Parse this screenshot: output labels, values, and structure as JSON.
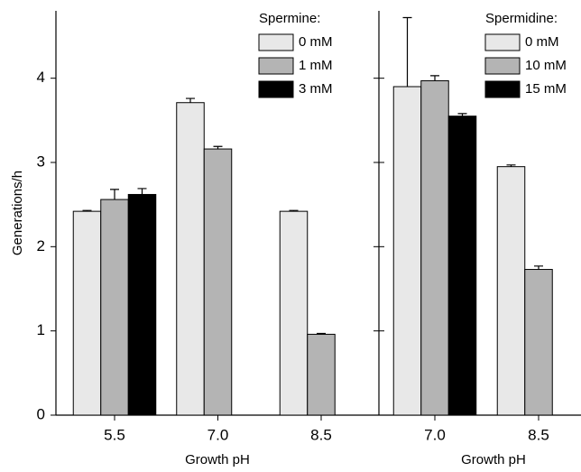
{
  "chart_data": [
    {
      "type": "bar",
      "legend_title": "Spermine:",
      "x_label": "Growth pH",
      "y_label": "Generations/h",
      "categories": [
        "5.5",
        "7.0",
        "8.5"
      ],
      "series": [
        {
          "name": "0 mM",
          "color": "#e8e8e8",
          "values": [
            2.42,
            3.71,
            2.42
          ],
          "errors": [
            0.01,
            0.05,
            0.01
          ]
        },
        {
          "name": "1 mM",
          "color": "#b4b4b4",
          "values": [
            2.56,
            3.16,
            0.96
          ],
          "errors": [
            0.12,
            0.03,
            0.01
          ]
        },
        {
          "name": "3 mM",
          "color": "#000000",
          "values": [
            2.62,
            null,
            null
          ],
          "errors": [
            0.07,
            null,
            null
          ]
        }
      ],
      "ylim": [
        0,
        4.8
      ],
      "yticks": [
        0,
        1,
        2,
        3,
        4
      ]
    },
    {
      "type": "bar",
      "legend_title": "Spermidine:",
      "x_label": "Growth pH",
      "categories": [
        "7.0",
        "8.5"
      ],
      "series": [
        {
          "name": "0 mM",
          "color": "#e8e8e8",
          "values": [
            3.9,
            2.95
          ],
          "errors": [
            0.82,
            0.02
          ]
        },
        {
          "name": "10 mM",
          "color": "#b4b4b4",
          "values": [
            3.97,
            1.73
          ],
          "errors": [
            0.06,
            0.04
          ]
        },
        {
          "name": "15 mM",
          "color": "#000000",
          "values": [
            3.55,
            null
          ],
          "errors": [
            0.03,
            null
          ]
        }
      ],
      "ylim": [
        0,
        4.8
      ]
    }
  ]
}
